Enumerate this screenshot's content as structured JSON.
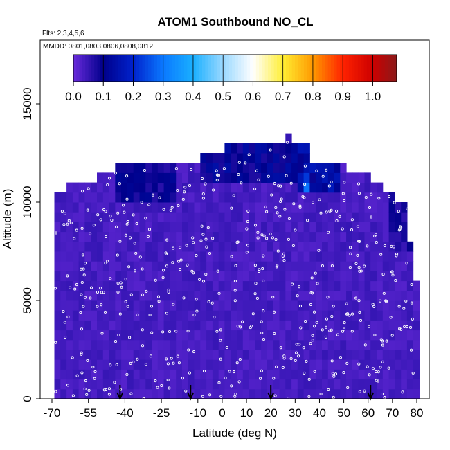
{
  "chart_data": {
    "type": "heatmap",
    "title": "ATOM1 Southbound NO_CL",
    "flights_label": "Flts: 2,3,4,5,6",
    "dates_label": "MMDD: 0801,0803,0806,0808,0812",
    "xlabel": "Latitude (deg N)",
    "ylabel": "Altitude (m)",
    "xlim": [
      -70,
      85
    ],
    "ylim": [
      0,
      17500
    ],
    "x_ticks": [
      -70,
      -55,
      -40,
      -25,
      -10,
      0,
      10,
      20,
      30,
      40,
      50,
      60,
      70,
      80
    ],
    "y_ticks": [
      0,
      5000,
      10000,
      15000
    ],
    "colorbar": {
      "range": [
        0,
        1.08
      ],
      "ticks": [
        0.0,
        0.1,
        0.2,
        0.3,
        0.4,
        0.5,
        0.6,
        0.7,
        0.8,
        0.9,
        1.0
      ],
      "tick_labels": [
        "0.0",
        "0.1",
        "0.2",
        "0.3",
        "0.4",
        "0.5",
        "0.6",
        "0.7",
        "0.8",
        "0.9",
        "1.0"
      ],
      "stops": [
        {
          "v": 0.0,
          "c": "#6a2bdc"
        },
        {
          "v": 0.1,
          "c": "#00008b"
        },
        {
          "v": 0.2,
          "c": "#0022cc"
        },
        {
          "v": 0.3,
          "c": "#0a78ff"
        },
        {
          "v": 0.4,
          "c": "#1ab0ff"
        },
        {
          "v": 0.5,
          "c": "#9ad8ff"
        },
        {
          "v": 0.6,
          "c": "#ffffff"
        },
        {
          "v": 0.7,
          "c": "#ffee33"
        },
        {
          "v": 0.8,
          "c": "#ff9900"
        },
        {
          "v": 0.9,
          "c": "#ff2200"
        },
        {
          "v": 1.0,
          "c": "#cc0000"
        },
        {
          "v": 1.08,
          "c": "#8b1a1a"
        }
      ]
    },
    "profile_top_altitude": [
      {
        "lat_from": -69,
        "lat_to": -63,
        "alt": 10500
      },
      {
        "lat_from": -63,
        "lat_to": -52,
        "alt": 11000
      },
      {
        "lat_from": -52,
        "lat_to": -45,
        "alt": 11500
      },
      {
        "lat_from": -45,
        "lat_to": -10,
        "alt": 12000
      },
      {
        "lat_from": -10,
        "lat_to": 2,
        "alt": 12500
      },
      {
        "lat_from": 2,
        "lat_to": 25,
        "alt": 13000
      },
      {
        "lat_from": 25,
        "lat_to": 28,
        "alt": 13500
      },
      {
        "lat_from": 28,
        "lat_to": 37,
        "alt": 13000
      },
      {
        "lat_from": 37,
        "lat_to": 50,
        "alt": 12000
      },
      {
        "lat_from": 50,
        "lat_to": 62,
        "alt": 11500
      },
      {
        "lat_from": 62,
        "lat_to": 67,
        "alt": 11000
      },
      {
        "lat_from": 67,
        "lat_to": 72,
        "alt": 10500
      },
      {
        "lat_from": 72,
        "lat_to": 77,
        "alt": 10000
      },
      {
        "lat_from": 77,
        "lat_to": 78,
        "alt": 8000
      },
      {
        "lat_from": 78,
        "lat_to": 80,
        "alt": 6000
      }
    ],
    "high_value_patches": [
      {
        "lat_from": -45,
        "lat_to": -20,
        "alt_from": 10000,
        "alt_to": 12000,
        "value": 0.1
      },
      {
        "lat_from": -10,
        "lat_to": 30,
        "alt_from": 11000,
        "alt_to": 13000,
        "value": 0.12
      },
      {
        "lat_from": 30,
        "lat_to": 48,
        "alt_from": 10500,
        "alt_to": 13000,
        "value": 0.15
      },
      {
        "lat_from": 33,
        "lat_to": 35,
        "alt_from": 10500,
        "alt_to": 12000,
        "value": 0.25
      },
      {
        "lat_from": 68,
        "lat_to": 78,
        "alt_from": 7500,
        "alt_to": 10500,
        "value": 0.08
      }
    ],
    "background_value": 0.02,
    "arrow_latitudes": [
      -42,
      -13,
      20,
      61
    ]
  }
}
